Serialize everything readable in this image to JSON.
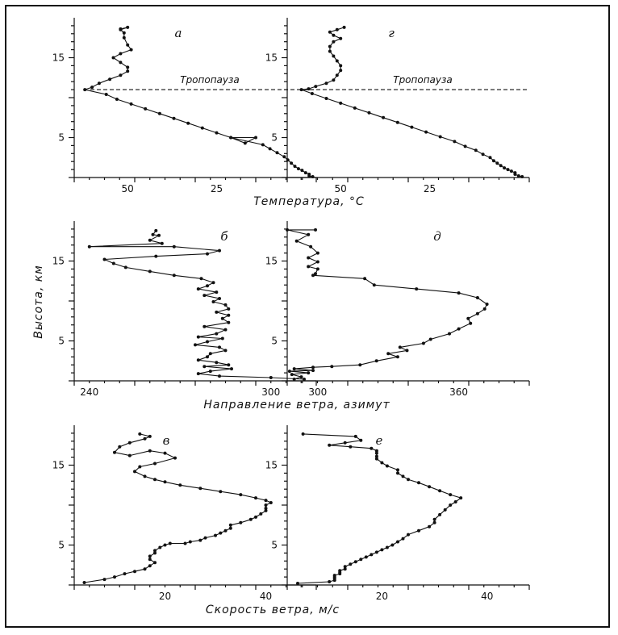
{
  "chart_data": [
    {
      "type": "line",
      "panel_label": "а",
      "x_axis_label": "Температура, °C",
      "x_ticks": [
        "50",
        "25"
      ],
      "y_ticks": [
        "5",
        "15"
      ],
      "annotation": "Тропопауза",
      "tropopause_height": 11,
      "xlim": [
        -65,
        3
      ],
      "ylim": [
        0,
        20
      ],
      "series": [
        {
          "x": [
            -52,
            -50,
            -52,
            -51,
            -51,
            -50,
            -49,
            -52,
            -54,
            -52,
            -50,
            -50,
            -52,
            -55,
            -58,
            -60,
            -62,
            -56,
            -53,
            -49,
            -45,
            -41,
            -37,
            -33,
            -29,
            -25,
            -21,
            -17,
            -14,
            -21,
            -12,
            -10,
            -8,
            -6,
            -5,
            -4,
            -3,
            -2,
            -1,
            0,
            1,
            1,
            2
          ],
          "y": [
            18.6,
            18.8,
            18.5,
            18.1,
            17.5,
            16.6,
            16.0,
            15.5,
            15.0,
            14.4,
            13.8,
            13.3,
            12.8,
            12.3,
            11.8,
            11.3,
            11.0,
            10.4,
            9.8,
            9.2,
            8.6,
            8.0,
            7.4,
            6.8,
            6.2,
            5.6,
            5.0,
            4.3,
            5.0,
            5.0,
            4.1,
            3.6,
            3.1,
            2.6,
            2.2,
            1.8,
            1.4,
            1.1,
            0.9,
            0.6,
            0.4,
            0.2,
            0.1
          ]
        }
      ]
    },
    {
      "type": "line",
      "panel_label": "г",
      "x_axis_label": "Температура, °C",
      "x_ticks": [
        "50",
        "25"
      ],
      "y_ticks": [
        "5",
        "15"
      ],
      "annotation": "Тропопауза",
      "tropopause_height": 11,
      "xlim": [
        -65,
        3
      ],
      "ylim": [
        0,
        20
      ],
      "series": [
        {
          "x": [
            -49,
            -51,
            -53,
            -52,
            -50,
            -52,
            -53,
            -53,
            -52,
            -51,
            -50,
            -50,
            -51,
            -52,
            -54,
            -57,
            -59,
            -61,
            -58,
            -54,
            -50,
            -46,
            -42,
            -38,
            -34,
            -30,
            -26,
            -22,
            -18,
            -15,
            -12,
            -10,
            -8,
            -7,
            -6,
            -5,
            -4,
            -3,
            -2,
            -1,
            -1,
            0,
            1
          ],
          "y": [
            18.8,
            18.5,
            18.2,
            17.8,
            17.4,
            17.0,
            16.4,
            15.8,
            15.2,
            14.6,
            14.0,
            13.4,
            12.8,
            12.2,
            11.8,
            11.4,
            11.1,
            11.0,
            10.5,
            9.9,
            9.3,
            8.7,
            8.1,
            7.5,
            6.9,
            6.3,
            5.7,
            5.1,
            4.5,
            3.9,
            3.4,
            2.9,
            2.5,
            2.1,
            1.8,
            1.5,
            1.2,
            1.0,
            0.8,
            0.6,
            0.4,
            0.2,
            0.1
          ]
        }
      ]
    },
    {
      "type": "line",
      "panel_label": "б",
      "y_axis_label": "Высота, км",
      "x_axis_label": "Направление ветра, азимут",
      "x_ticks": [
        "240",
        "300"
      ],
      "y_ticks": [
        "5",
        "15"
      ],
      "xlim": [
        235,
        315
      ],
      "ylim": [
        0,
        20
      ],
      "series": [
        {
          "x": [
            262,
            261,
            263,
            260,
            264,
            240,
            268,
            283,
            279,
            262,
            245,
            248,
            252,
            260,
            268,
            277,
            281,
            279,
            276,
            282,
            278,
            283,
            281,
            285,
            286,
            282,
            286,
            284,
            286,
            278,
            285,
            282,
            276,
            284,
            279,
            275,
            283,
            285,
            280,
            279,
            276,
            282,
            286,
            278,
            287,
            280,
            276,
            283,
            300,
            311
          ],
          "y": [
            18.8,
            18.3,
            18.2,
            17.6,
            17.2,
            16.8,
            16.8,
            16.3,
            15.9,
            15.6,
            15.2,
            14.7,
            14.2,
            13.7,
            13.2,
            12.8,
            12.3,
            11.9,
            11.5,
            11.1,
            10.7,
            10.3,
            9.9,
            9.5,
            9.0,
            8.6,
            8.2,
            7.8,
            7.3,
            6.8,
            6.4,
            5.9,
            5.5,
            5.3,
            4.9,
            4.5,
            4.2,
            3.8,
            3.4,
            3.0,
            2.6,
            2.3,
            2.0,
            1.8,
            1.5,
            1.2,
            0.9,
            0.6,
            0.4,
            0.2
          ]
        }
      ]
    },
    {
      "type": "line",
      "panel_label": "д",
      "x_axis_label": "Направление ветра, азимут",
      "x_ticks": [
        "300",
        "360"
      ],
      "y_ticks": [
        "5",
        "15"
      ],
      "xlim": [
        287,
        390
      ],
      "ylim": [
        0,
        20
      ],
      "series": [
        {
          "x": [
            299,
            287,
            296,
            291,
            297,
            300,
            296,
            300,
            296,
            300,
            299,
            298,
            320,
            324,
            342,
            360,
            368,
            372,
            371,
            368,
            364,
            365,
            360,
            356,
            348,
            345,
            335,
            338,
            330,
            334,
            325,
            318,
            306,
            298,
            290,
            298,
            288,
            296,
            289,
            293,
            290
          ],
          "y": [
            18.9,
            18.9,
            18.3,
            17.5,
            16.8,
            16.0,
            15.4,
            14.9,
            14.3,
            14.0,
            13.4,
            13.2,
            12.8,
            12.0,
            11.5,
            11.0,
            10.4,
            9.6,
            9.0,
            8.4,
            7.8,
            7.2,
            6.5,
            5.9,
            5.2,
            4.7,
            4.2,
            3.8,
            3.4,
            3.0,
            2.5,
            2.0,
            1.8,
            1.7,
            1.5,
            1.3,
            1.2,
            1.0,
            0.8,
            0.5,
            0.2
          ]
        }
      ]
    },
    {
      "type": "line",
      "panel_label": "в",
      "x_axis_label": "Скорость ветра, м/с",
      "x_ticks": [
        "20",
        "40"
      ],
      "y_ticks": [
        "5",
        "15"
      ],
      "xlim": [
        2,
        50
      ],
      "ylim": [
        0,
        20
      ],
      "series": [
        {
          "x": [
            15,
            17,
            16,
            13,
            11,
            10,
            13,
            17,
            20,
            22,
            18,
            15,
            14,
            16,
            18,
            20,
            23,
            27,
            31,
            35,
            38,
            40,
            41,
            40,
            40,
            40,
            39,
            38,
            37,
            35,
            33,
            33,
            32,
            31,
            30,
            28,
            27,
            25,
            24,
            21,
            20,
            19,
            18,
            18,
            17,
            17,
            18,
            17,
            16,
            14,
            12,
            10,
            8,
            4
          ],
          "y": [
            18.9,
            18.6,
            18.3,
            17.8,
            17.3,
            16.6,
            16.2,
            16.8,
            16.5,
            15.9,
            15.2,
            14.8,
            14.2,
            13.6,
            13.2,
            12.9,
            12.5,
            12.1,
            11.7,
            11.3,
            10.9,
            10.6,
            10.3,
            10.0,
            9.6,
            9.3,
            8.9,
            8.5,
            8.2,
            7.8,
            7.5,
            7.1,
            6.8,
            6.5,
            6.2,
            5.9,
            5.6,
            5.4,
            5.2,
            5.2,
            5.0,
            4.7,
            4.3,
            4.0,
            3.6,
            3.2,
            2.8,
            2.4,
            2.0,
            1.7,
            1.4,
            1.0,
            0.7,
            0.3
          ]
        }
      ]
    },
    {
      "type": "line",
      "panel_label": "е",
      "x_axis_label": "Скорость ветра, м/с",
      "x_ticks": [
        "20",
        "40"
      ],
      "y_ticks": [
        "5",
        "15"
      ],
      "xlim": [
        2,
        48
      ],
      "ylim": [
        0,
        20
      ],
      "series": [
        {
          "x": [
            5,
            15,
            16,
            13,
            10,
            14,
            18,
            19,
            19,
            19,
            19,
            20,
            21,
            23,
            23,
            24,
            25,
            27,
            29,
            31,
            33,
            35,
            34,
            33,
            32,
            31,
            30,
            30,
            29,
            27,
            25,
            24,
            23,
            22,
            21,
            20,
            19,
            18,
            17,
            16,
            15,
            14,
            13,
            13,
            12,
            12,
            12,
            11,
            11,
            11,
            11,
            10,
            4
          ],
          "y": [
            18.9,
            18.6,
            18.1,
            17.8,
            17.5,
            17.3,
            17.1,
            16.8,
            16.5,
            16.1,
            15.8,
            15.3,
            14.9,
            14.4,
            14.0,
            13.6,
            13.2,
            12.8,
            12.3,
            11.8,
            11.3,
            10.9,
            10.4,
            10.0,
            9.4,
            8.8,
            8.2,
            7.8,
            7.3,
            6.8,
            6.3,
            5.8,
            5.4,
            5.0,
            4.7,
            4.4,
            4.1,
            3.8,
            3.5,
            3.2,
            2.9,
            2.6,
            2.3,
            2.0,
            1.8,
            1.6,
            1.4,
            1.2,
            1.0,
            0.8,
            0.6,
            0.4,
            0.2
          ]
        }
      ]
    }
  ]
}
